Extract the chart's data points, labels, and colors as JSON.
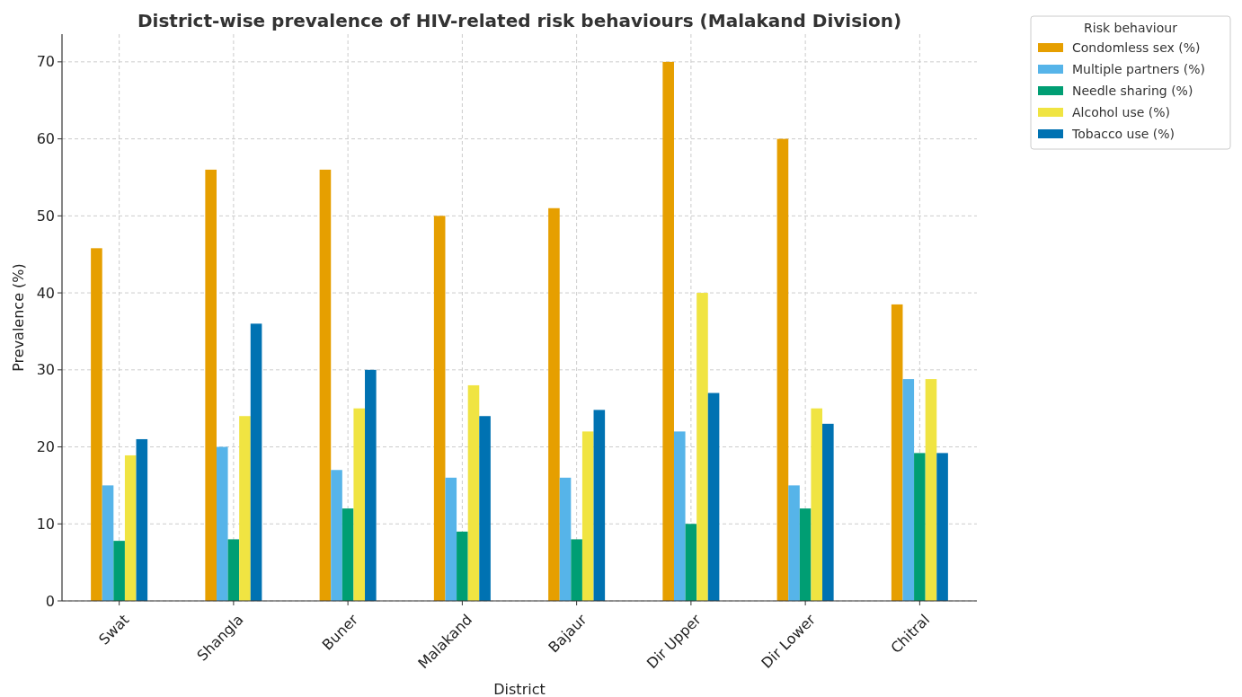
{
  "chart_data": {
    "type": "bar",
    "title": "District-wise prevalence of HIV-related risk behaviours (Malakand Division)",
    "xlabel": "District",
    "ylabel": "Prevalence (%)",
    "legend_title": "Risk behaviour",
    "categories": [
      "Swat",
      "Shangla",
      "Buner",
      "Malakand",
      "Bajaur",
      "Dir Upper",
      "Dir Lower",
      "Chitral"
    ],
    "series": [
      {
        "name": "Condomless sex (%)",
        "color": "#e69f00",
        "values": [
          45.8,
          56,
          56,
          50,
          51,
          70,
          60,
          38.5
        ]
      },
      {
        "name": "Multiple partners (%)",
        "color": "#56b4e9",
        "values": [
          15,
          20,
          17,
          16,
          16,
          22,
          15,
          28.8
        ]
      },
      {
        "name": "Needle sharing (%)",
        "color": "#009e73",
        "values": [
          7.8,
          8,
          12,
          9,
          8,
          10,
          12,
          19.2
        ]
      },
      {
        "name": "Alcohol use (%)",
        "color": "#f0e442",
        "values": [
          18.9,
          24,
          25,
          28,
          22,
          40,
          25,
          28.8
        ]
      },
      {
        "name": "Tobacco use (%)",
        "color": "#0072b2",
        "values": [
          21,
          36,
          30,
          24,
          24.8,
          27,
          23,
          19.2
        ]
      }
    ],
    "ylim": [
      0,
      73.6
    ],
    "yticks": [
      0,
      10,
      20,
      30,
      40,
      50,
      60,
      70
    ],
    "grid": true,
    "legend": "top right"
  }
}
